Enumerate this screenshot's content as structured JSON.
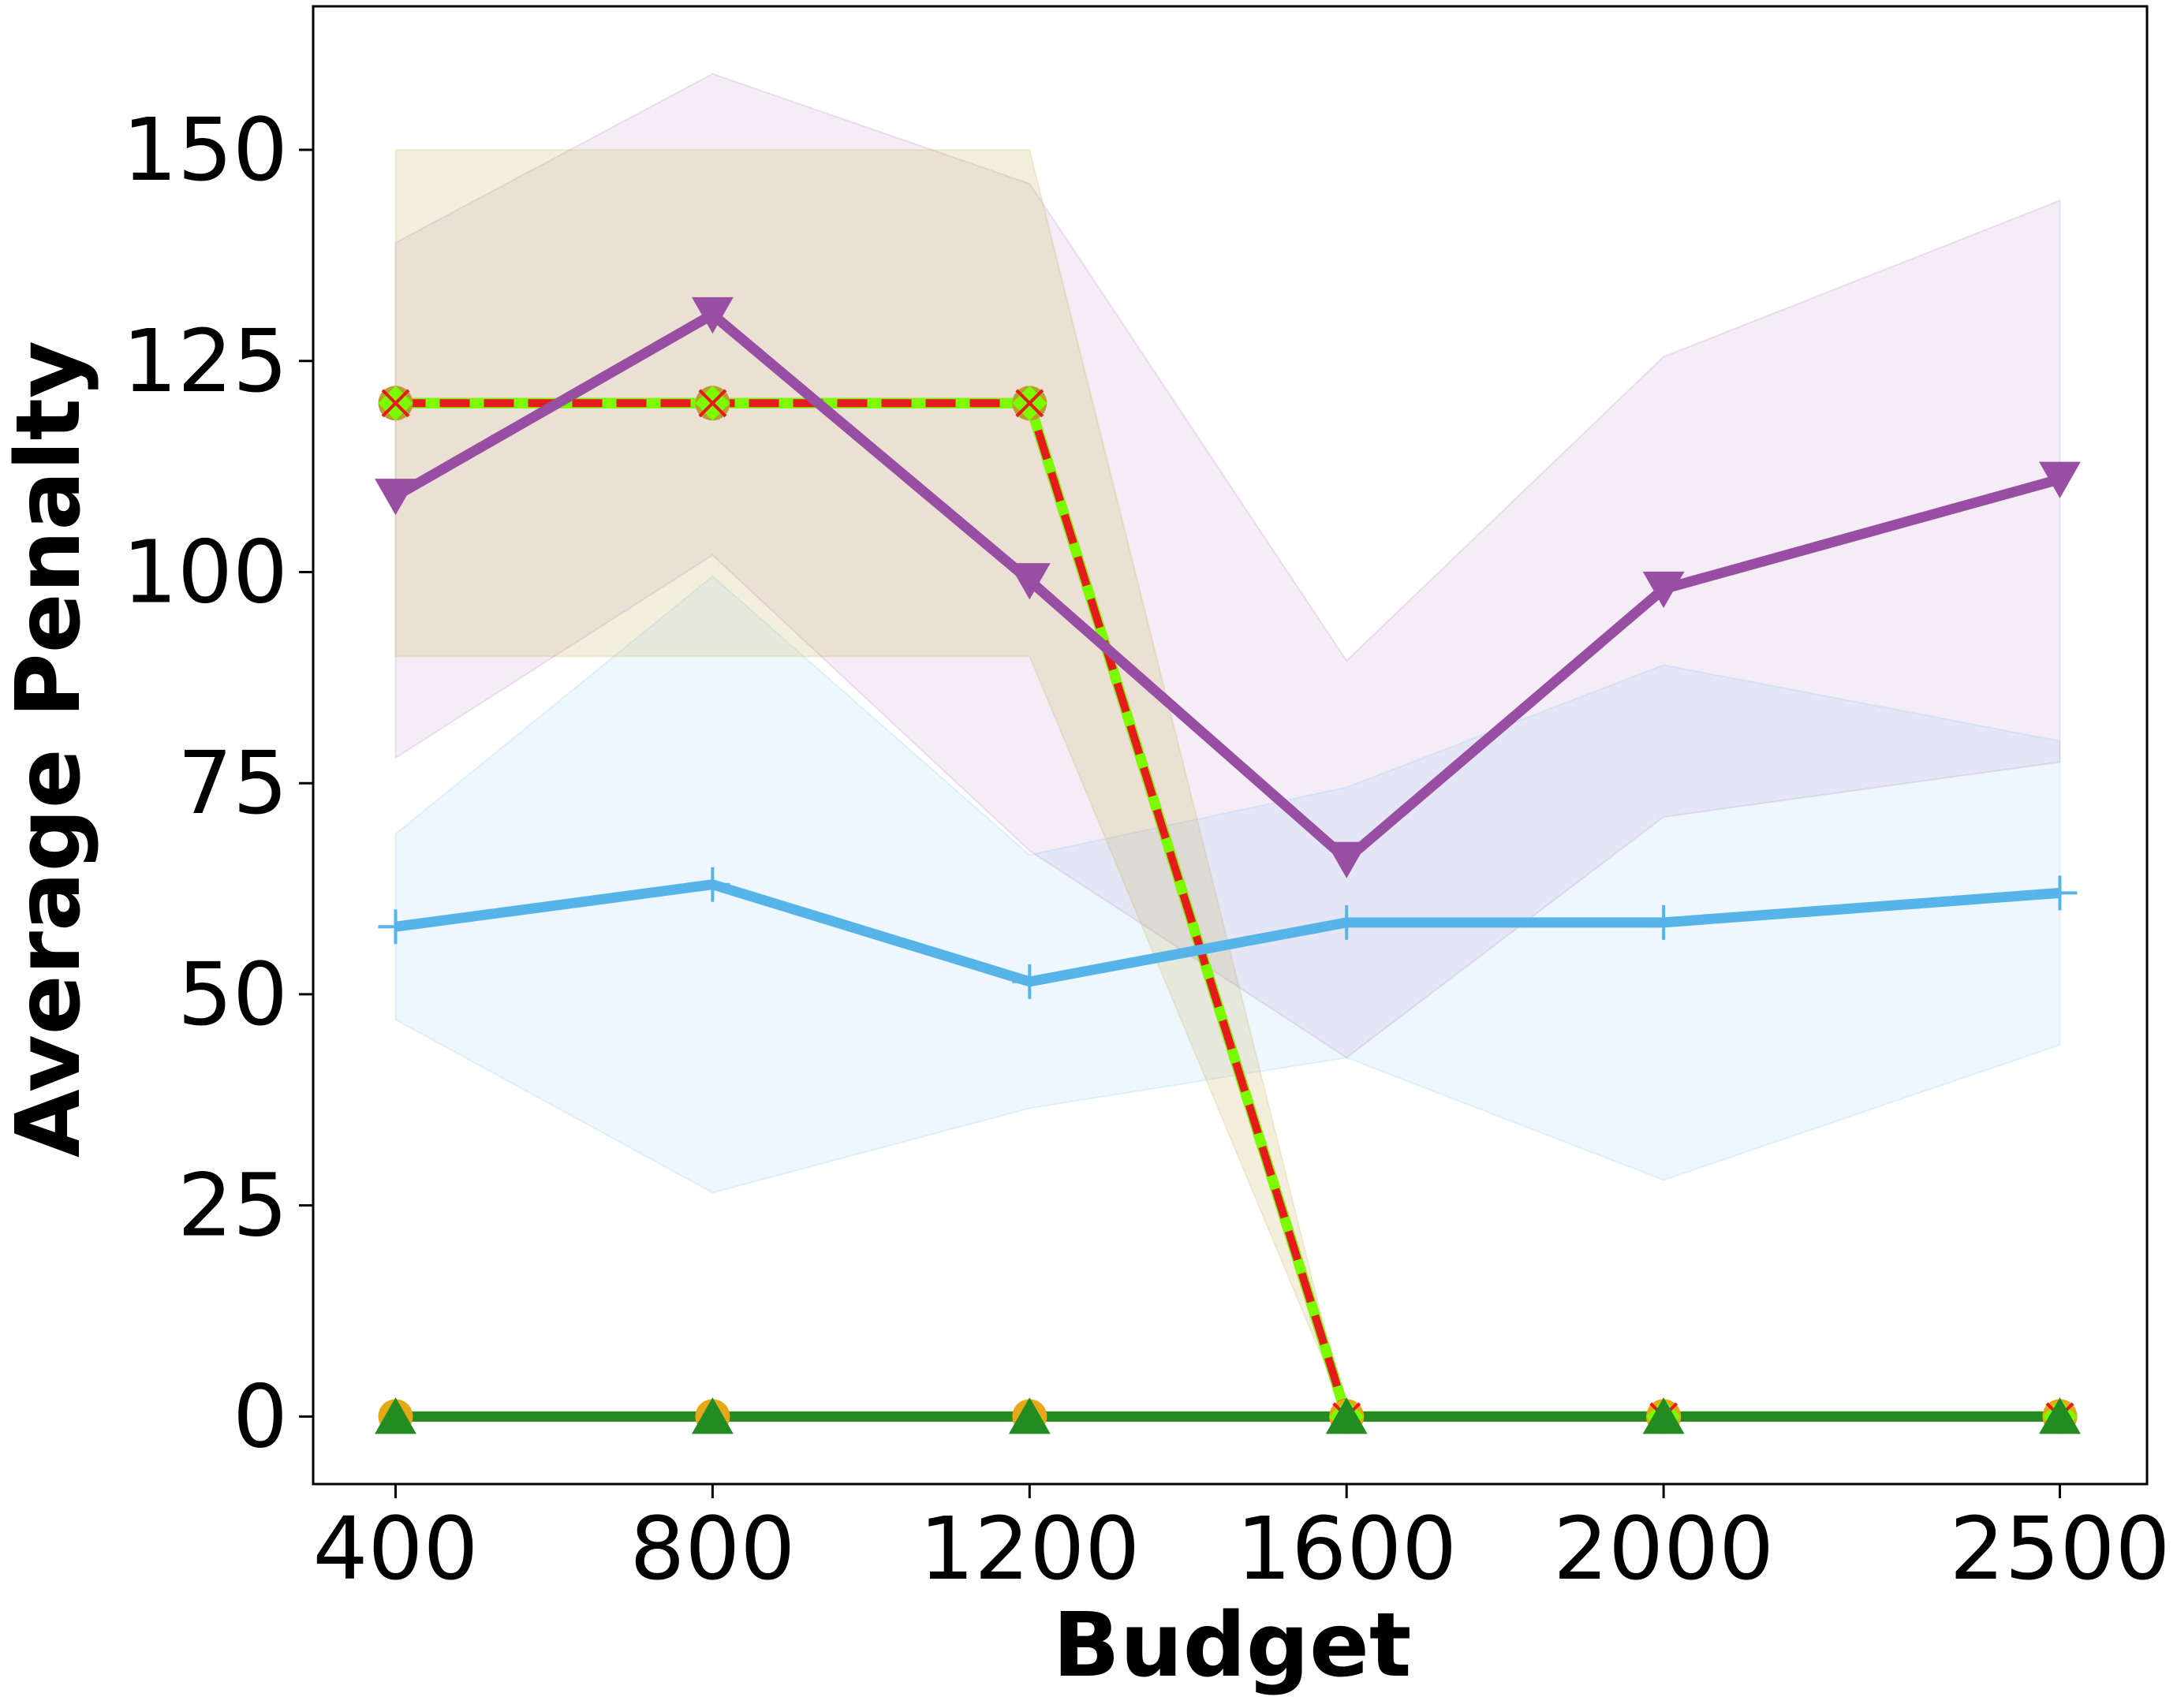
{
  "chart_data": {
    "type": "line",
    "title": "",
    "xlabel": "Budget",
    "ylabel": "Average Penalty",
    "x": [
      400,
      800,
      1200,
      1600,
      2000,
      2500
    ],
    "x_ticks": [
      "400",
      "800",
      "1200",
      "1600",
      "2000",
      "2500"
    ],
    "y_ticks": [
      0,
      25,
      50,
      75,
      100,
      125,
      150
    ],
    "xlim": [
      296,
      2610
    ],
    "ylim": [
      -8,
      167
    ],
    "grid": false,
    "legend": "none",
    "series": [
      {
        "key": "purple",
        "color": "#984ea3",
        "marker": "triangle-down",
        "values": [
          109,
          130.5,
          99,
          66,
          98,
          111
        ],
        "band_lower": [
          78,
          102,
          67,
          42.5,
          71,
          77.5
        ],
        "band_upper": [
          139,
          159,
          146,
          89.5,
          125.5,
          144
        ]
      },
      {
        "key": "blue",
        "color": "#56b4e9",
        "marker": "plus",
        "values": [
          58,
          63,
          51.5,
          58.5,
          58.5,
          62
        ],
        "band_lower": [
          47,
          26.5,
          36.5,
          42.5,
          28,
          44
        ],
        "band_upper": [
          69,
          99.5,
          66.5,
          74.5,
          89,
          80
        ]
      },
      {
        "key": "olive",
        "color": "#b8a030",
        "marker": "circle",
        "values": [
          120,
          120,
          120,
          0,
          0,
          0
        ],
        "band_lower": [
          90,
          90,
          90,
          0,
          0,
          0
        ],
        "band_upper": [
          150,
          150,
          150,
          0,
          0,
          0
        ]
      },
      {
        "key": "lime",
        "color": "#7cfc00",
        "marker": "diamond",
        "values": [
          120,
          120,
          120,
          0,
          0,
          0
        ]
      },
      {
        "key": "red",
        "color": "#e41a1c",
        "marker": "x",
        "values": [
          120,
          120,
          120,
          0,
          0,
          0
        ]
      },
      {
        "key": "gold",
        "color": "#e6a817",
        "marker": "circle",
        "values": [
          0,
          0,
          0,
          0,
          0,
          0
        ]
      },
      {
        "key": "green",
        "color": "#228b22",
        "marker": "triangle-up",
        "values": [
          0,
          0,
          0,
          0,
          0,
          0
        ]
      }
    ]
  }
}
